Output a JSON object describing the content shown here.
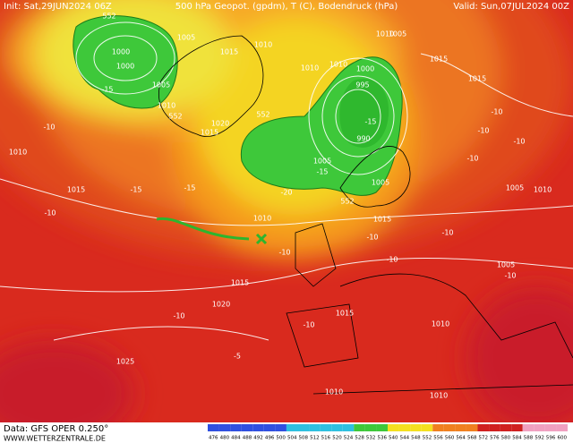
{
  "header": {
    "init": "Init: Sat,29JUN2024 06Z",
    "title": "500 hPa Geopot. (gpdm), T (C), Bodendruck (hPa)",
    "valid": "Valid: Sun,07JUL2024 00Z"
  },
  "footer": {
    "source": "Data: GFS OPER 0.250°",
    "site": "WWW.WETTERZENTRALE.DE"
  },
  "colorbar": {
    "ticks": [
      476,
      480,
      484,
      488,
      492,
      496,
      500,
      504,
      508,
      512,
      516,
      520,
      524,
      528,
      532,
      536,
      540,
      544,
      548,
      552,
      556,
      560,
      564,
      568,
      572,
      576,
      580,
      584,
      588,
      592,
      596,
      600
    ]
  },
  "map_labels": [
    "552",
    "1005",
    "1000",
    "1000",
    "1005",
    "1010",
    "1010",
    "552",
    "1020",
    "1015",
    "552",
    "1010",
    "1010",
    "1000",
    "995",
    "990",
    "1005",
    "552",
    "1015",
    "1010",
    "1015",
    "1015",
    "1005",
    "1010",
    "1015",
    "1020",
    "1025",
    "1015",
    "1010",
    "1010",
    "1010",
    "1005",
    "1005",
    "1015",
    "1015",
    "1005",
    "1010",
    "1010",
    "-15",
    "-15",
    "-10",
    "-15",
    "-20",
    "-15",
    "-10",
    "-15",
    "-10",
    "-5",
    "-10",
    "-10",
    "-10",
    "-10",
    "-10",
    "-10",
    "-10",
    "-10",
    "-10",
    "-10"
  ]
}
